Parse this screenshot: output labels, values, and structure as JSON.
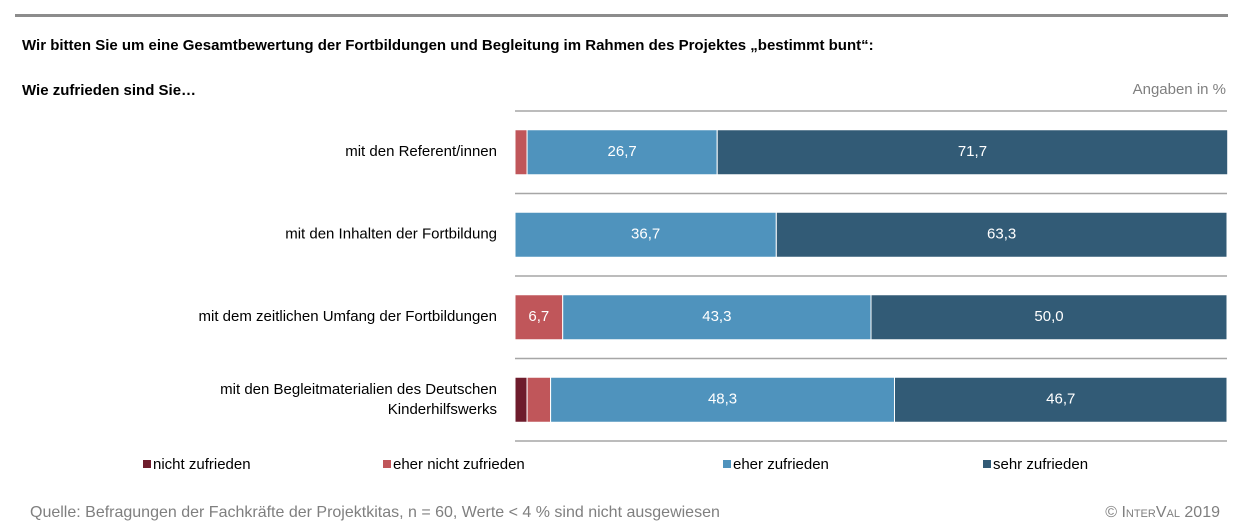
{
  "chart_data": {
    "type": "stacked-bar-horizontal",
    "title": "Wir bitten Sie um eine Gesamtbewertung der Fortbildungen und Begleitung im Rahmen des Projektes „bestimmt bunt“:",
    "subtitle": "Wie zufrieden sind Sie…",
    "unit_note": "Angaben in %",
    "source": "Quelle: Befragungen der Fachkräfte der Projektkitas, n = 60, Werte < 4 % sind nicht ausgewiesen",
    "copyright": "© InterVal 2019",
    "categories": [
      "mit den Referent/innen",
      "mit den Inhalten der Fortbildung",
      "mit dem zeitlichen Umfang der Fortbildungen",
      "mit den Begleitmaterialien des Deutschen\nKinderhilfswerks"
    ],
    "xlim": [
      0,
      100
    ],
    "legend": "bottom",
    "series": [
      {
        "name": "nicht zufrieden",
        "color": "#6e1c2c",
        "values": [
          0,
          0,
          0,
          1.7
        ],
        "value_labels": [
          null,
          null,
          null,
          null
        ]
      },
      {
        "name": "eher nicht zufrieden",
        "color": "#c0565a",
        "values": [
          1.7,
          0,
          6.7,
          3.3
        ],
        "value_labels": [
          null,
          null,
          "6,7",
          null
        ]
      },
      {
        "name": "eher zufrieden",
        "color": "#4f93bd",
        "values": [
          26.7,
          36.7,
          43.3,
          48.3
        ],
        "value_labels": [
          "26,7",
          "36,7",
          "43,3",
          "48,3"
        ]
      },
      {
        "name": "sehr zufrieden",
        "color": "#325b76",
        "values": [
          71.7,
          63.3,
          50.0,
          46.7
        ],
        "value_labels": [
          "71,7",
          "63,3",
          "50,0",
          "46,7"
        ]
      }
    ]
  }
}
